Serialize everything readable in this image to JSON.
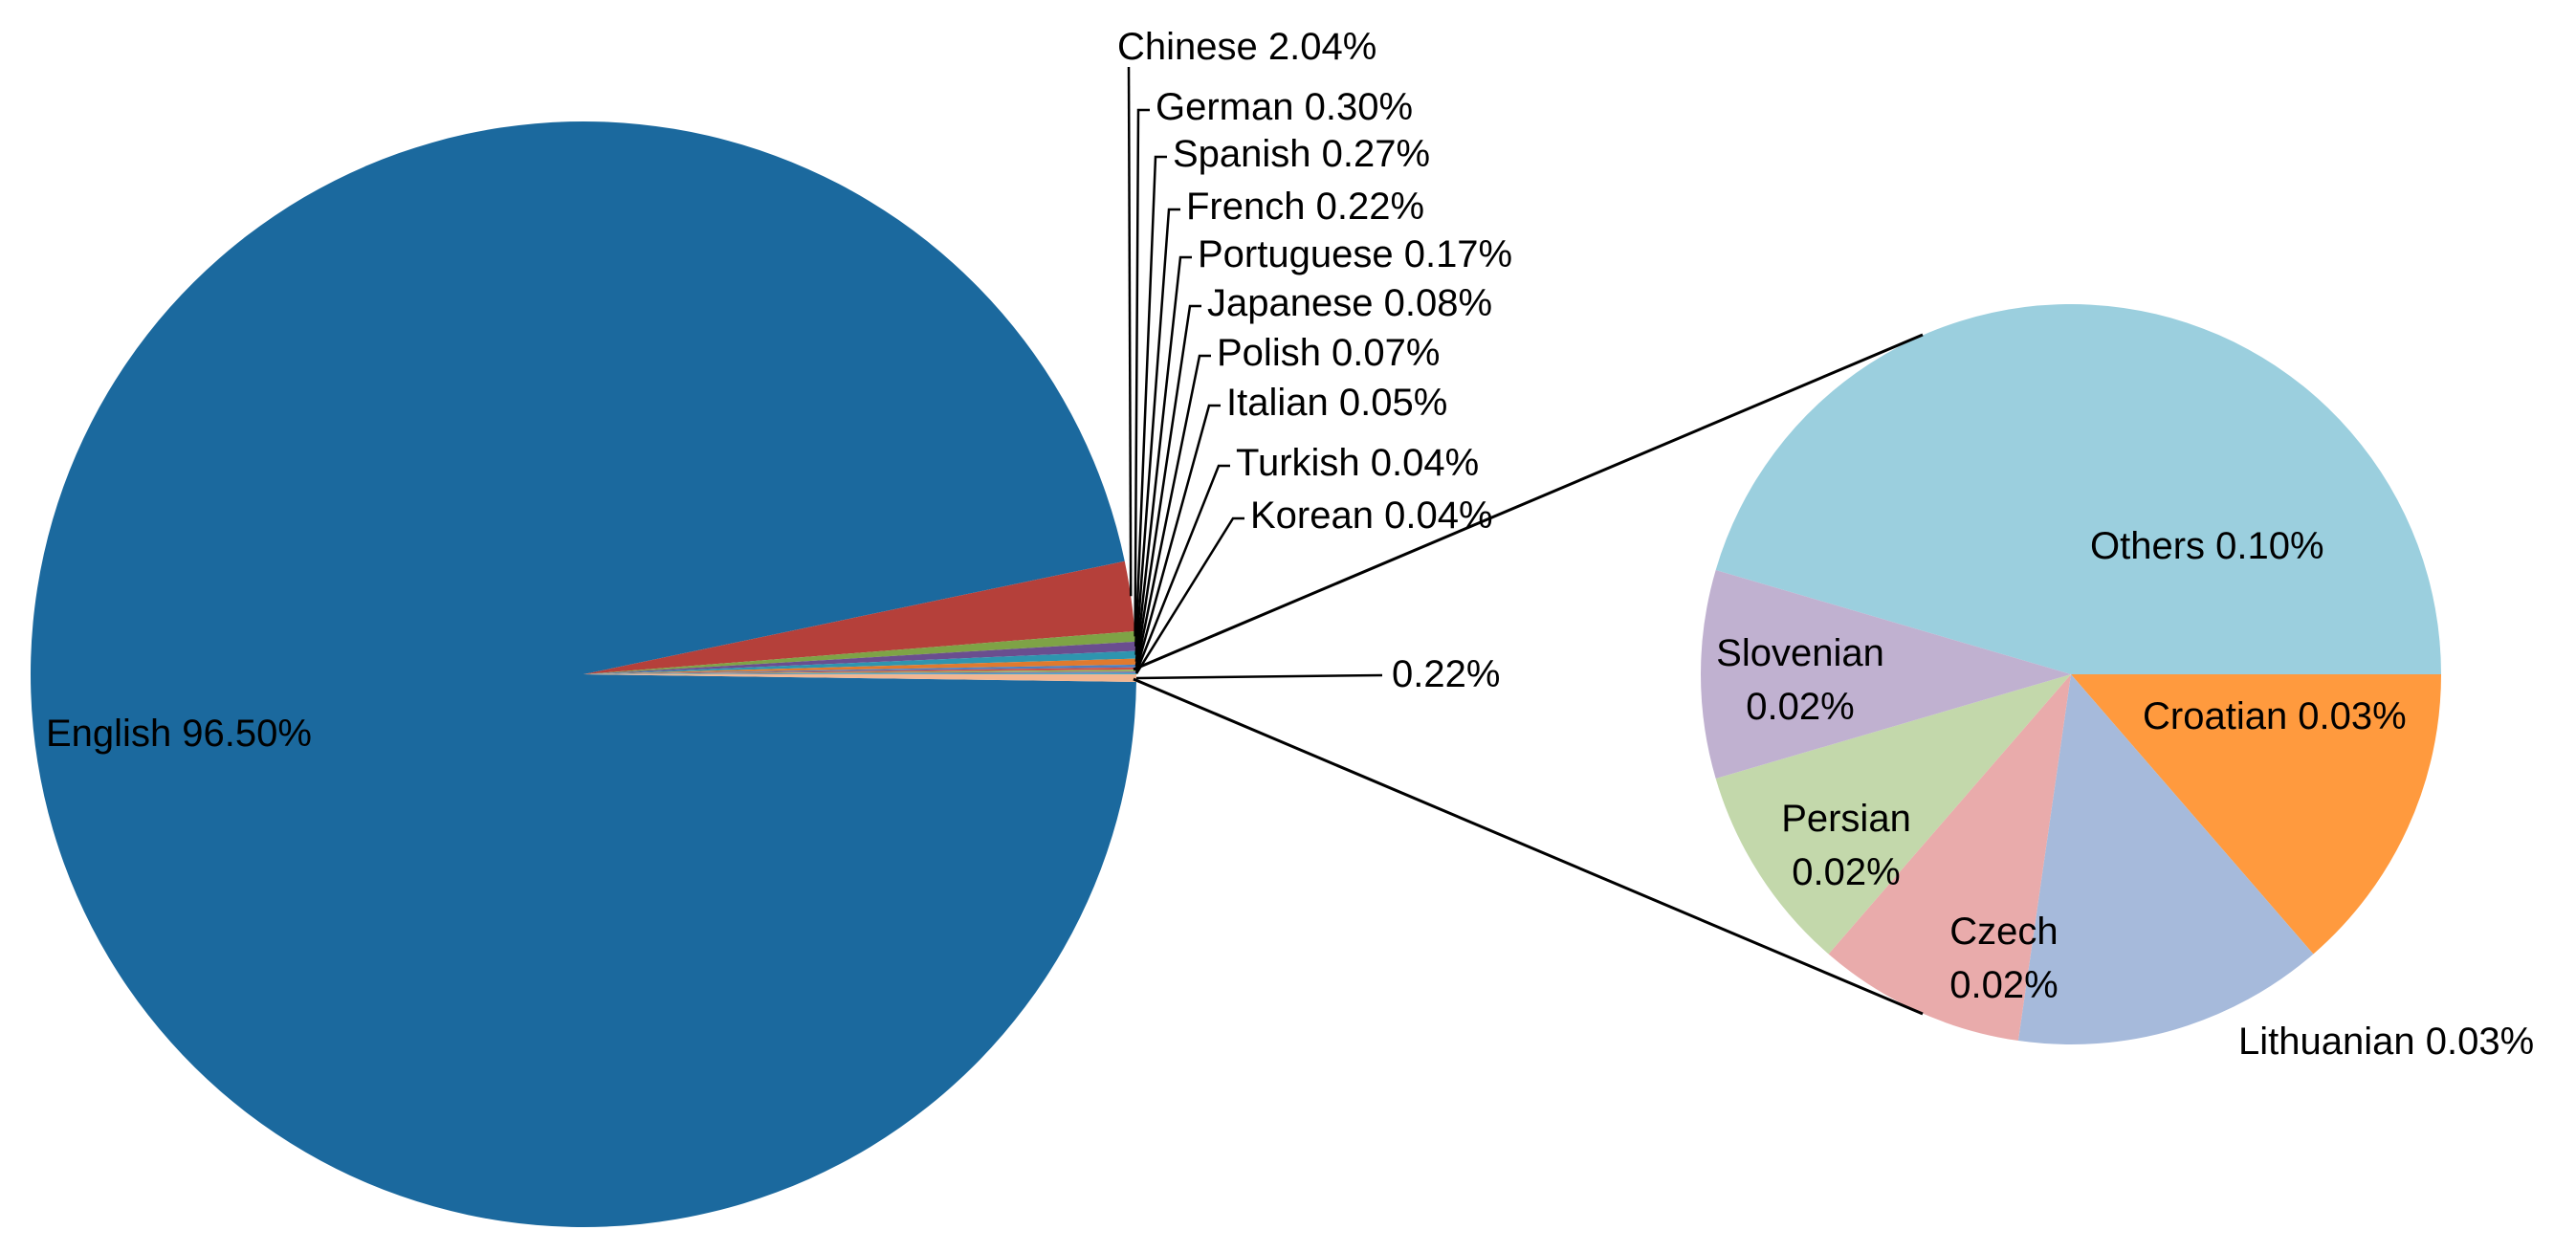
{
  "chart_data": [
    {
      "type": "pie",
      "slices": [
        {
          "label": "English",
          "value": 96.5,
          "display": "English 96.50%",
          "color": "#1B699E"
        },
        {
          "label": "Chinese",
          "value": 2.04,
          "display": "Chinese 2.04%",
          "color": "#B5403A"
        },
        {
          "label": "German",
          "value": 0.3,
          "display": "German 0.30%",
          "color": "#7EA346"
        },
        {
          "label": "Spanish",
          "value": 0.27,
          "display": "Spanish 0.27%",
          "color": "#6A4E8F"
        },
        {
          "label": "French",
          "value": 0.22,
          "display": "French 0.22%",
          "color": "#2E95AF"
        },
        {
          "label": "Portuguese",
          "value": 0.17,
          "display": "Portuguese 0.17%",
          "color": "#E07A2E"
        },
        {
          "label": "Japanese",
          "value": 0.08,
          "display": "Japanese 0.08%",
          "color": "#4E7FBF"
        },
        {
          "label": "Polish",
          "value": 0.07,
          "display": "Polish 0.07%",
          "color": "#C9524C"
        },
        {
          "label": "Italian",
          "value": 0.05,
          "display": "Italian 0.05%",
          "color": "#95B95A"
        },
        {
          "label": "Turkish",
          "value": 0.04,
          "display": "Turkish 0.04%",
          "color": "#8067A6"
        },
        {
          "label": "Korean",
          "value": 0.04,
          "display": "Korean 0.04%",
          "color": "#47AECB"
        },
        {
          "label": "",
          "value": 0.22,
          "display": "0.22%",
          "color": "#F2B692"
        }
      ]
    },
    {
      "type": "pie",
      "slices": [
        {
          "label": "Others",
          "value": 0.1,
          "display": "Others 0.10%",
          "color": "#9BCFDE"
        },
        {
          "label": "Croatian",
          "value": 0.03,
          "display": "Croatian 0.03%",
          "color": "#FF9A3E"
        },
        {
          "label": "Lithuanian",
          "value": 0.03,
          "display": "Lithuanian 0.03%",
          "color": "#A6BADB"
        },
        {
          "label": "Czech",
          "value": 0.02,
          "display_lines": [
            "Czech",
            "0.02%"
          ],
          "color": "#E9ABAB"
        },
        {
          "label": "Persian",
          "value": 0.02,
          "display_lines": [
            "Persian",
            "0.02%"
          ],
          "color": "#C3D8AB"
        },
        {
          "label": "Slovenian",
          "value": 0.02,
          "display_lines": [
            "Slovenian",
            "0.02%"
          ],
          "color": "#C0B1D0"
        }
      ]
    }
  ]
}
